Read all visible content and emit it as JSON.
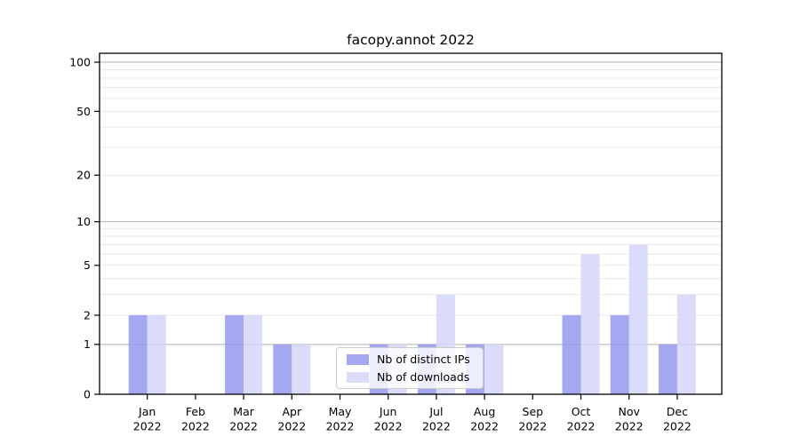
{
  "title": "facopy.annot 2022",
  "chart_data": {
    "type": "bar",
    "title": "facopy.annot 2022",
    "categories": [
      "Jan",
      "Feb",
      "Mar",
      "Apr",
      "May",
      "Jun",
      "Jul",
      "Aug",
      "Sep",
      "Oct",
      "Nov",
      "Dec"
    ],
    "category_year": "2022",
    "series": [
      {
        "name": "Nb of distinct IPs",
        "color": "#9499ee",
        "values": [
          2,
          0,
          2,
          1,
          0,
          1,
          1,
          1,
          0,
          2,
          2,
          1
        ]
      },
      {
        "name": "Nb of downloads",
        "color": "#d3d6f9",
        "values": [
          2,
          0,
          2,
          1,
          0,
          1,
          3,
          1,
          0,
          6,
          7,
          3
        ]
      }
    ],
    "xlabel": "",
    "ylabel": "",
    "y_scale": "log1p",
    "y_tick_labels": [
      0,
      1,
      2,
      5,
      10,
      20,
      50,
      100
    ],
    "major_gridlines": [
      1,
      10,
      100
    ],
    "minor_gridlines": [
      2,
      3,
      4,
      5,
      6,
      7,
      8,
      9,
      20,
      30,
      40,
      50,
      60,
      70,
      80,
      90
    ],
    "ylim": [
      0,
      113
    ],
    "grid": "on",
    "legend_position": "lower center"
  },
  "colors": {
    "bar_ips": "#9499ee",
    "bar_downloads": "#d3d6f9",
    "bar_opacity": 0.85,
    "grid_major": "#b0b0b0",
    "grid_minor": "#e9e9e9",
    "spine": "#000000",
    "text": "#000000",
    "legend_border": "#cccccc"
  }
}
